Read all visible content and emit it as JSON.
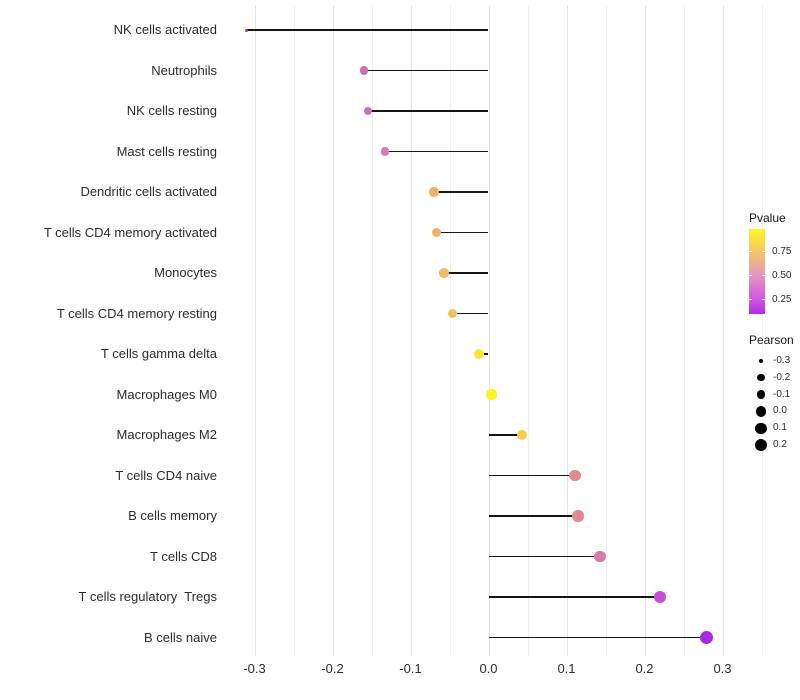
{
  "chart_data": {
    "type": "scatter",
    "subtype": "lollipop",
    "title": "",
    "xlabel": "",
    "ylabel": "",
    "x_axis": {
      "ticks": [
        "-0.3",
        "-0.2",
        "-0.1",
        "0.0",
        "0.1",
        "0.2",
        "0.3"
      ],
      "tick_values": [
        -0.3,
        -0.2,
        -0.1,
        0.0,
        0.1,
        0.2,
        0.3
      ],
      "min": -0.34,
      "max": 0.36,
      "gridline_step": 0.05
    },
    "categories": [
      "NK cells activated",
      "Neutrophils",
      "NK cells resting",
      "Mast cells resting",
      "Dendritic cells activated",
      "T cells CD4 memory activated",
      "Monocytes",
      "T cells CD4 memory resting",
      "T cells gamma delta",
      "Macrophages M0",
      "Macrophages M2",
      "T cells CD4 naive",
      "B cells memory",
      "T cells CD8",
      "T cells regulatory  Tregs",
      "B cells naive"
    ],
    "points": [
      {
        "label": "NK cells activated",
        "pearson": -0.31,
        "color": "#9b2be0"
      },
      {
        "label": "Neutrophils",
        "pearson": -0.16,
        "color": "#d06cb3"
      },
      {
        "label": "NK cells resting",
        "pearson": -0.155,
        "color": "#d06fb4"
      },
      {
        "label": "Mast cells resting",
        "pearson": -0.133,
        "color": "#d77bb0"
      },
      {
        "label": "Dendritic cells activated",
        "pearson": -0.07,
        "color": "#eeb168"
      },
      {
        "label": "T cells CD4 memory activated",
        "pearson": -0.067,
        "color": "#eeb065"
      },
      {
        "label": "Monocytes",
        "pearson": -0.057,
        "color": "#efbb6a"
      },
      {
        "label": "T cells CD4 memory resting",
        "pearson": -0.046,
        "color": "#f0c05e"
      },
      {
        "label": "T cells gamma delta",
        "pearson": -0.012,
        "color": "#fae63a"
      },
      {
        "label": "Macrophages M0",
        "pearson": 0.004,
        "color": "#fcf321"
      },
      {
        "label": "Macrophages M2",
        "pearson": 0.043,
        "color": "#f6cd4b"
      },
      {
        "label": "T cells CD4 naive",
        "pearson": 0.111,
        "color": "#e38c8e"
      },
      {
        "label": "B cells memory",
        "pearson": 0.115,
        "color": "#e28a92"
      },
      {
        "label": "T cells CD8",
        "pearson": 0.143,
        "color": "#d97cab"
      },
      {
        "label": "T cells regulatory  Tregs",
        "pearson": 0.22,
        "color": "#c24fd4"
      },
      {
        "label": "B cells naive",
        "pearson": 0.28,
        "color": "#a92ae4"
      }
    ],
    "legends": {
      "pvalue": {
        "title": "Pvalue",
        "labels": [
          "0.75",
          "0.50",
          "0.25"
        ],
        "label_positions": [
          0.26,
          0.54,
          0.82
        ],
        "gradient": [
          {
            "pos": 0.0,
            "color": "#fcf823"
          },
          {
            "pos": 0.28,
            "color": "#f4c36b"
          },
          {
            "pos": 0.55,
            "color": "#e495bd"
          },
          {
            "pos": 0.8,
            "color": "#d35ddd"
          },
          {
            "pos": 1.0,
            "color": "#b22ce8"
          }
        ]
      },
      "pearson": {
        "title": "Pearson",
        "entries": [
          {
            "label": "-0.3",
            "value": -0.3
          },
          {
            "label": "-0.2",
            "value": -0.2
          },
          {
            "label": "-0.1",
            "value": -0.1
          },
          {
            "label": "0.0",
            "value": 0.0
          },
          {
            "label": "0.1",
            "value": 0.1
          },
          {
            "label": "0.2",
            "value": 0.2
          }
        ],
        "dot_color": "#000000"
      }
    },
    "colors": {
      "stem": "#141414",
      "grid_major": "#e3e3e3",
      "grid_minor": "#f0f0f0",
      "axis_text": "#2b2b2b",
      "background": "#ffffff"
    },
    "legend_position": "right",
    "grid": "vertical-only"
  }
}
